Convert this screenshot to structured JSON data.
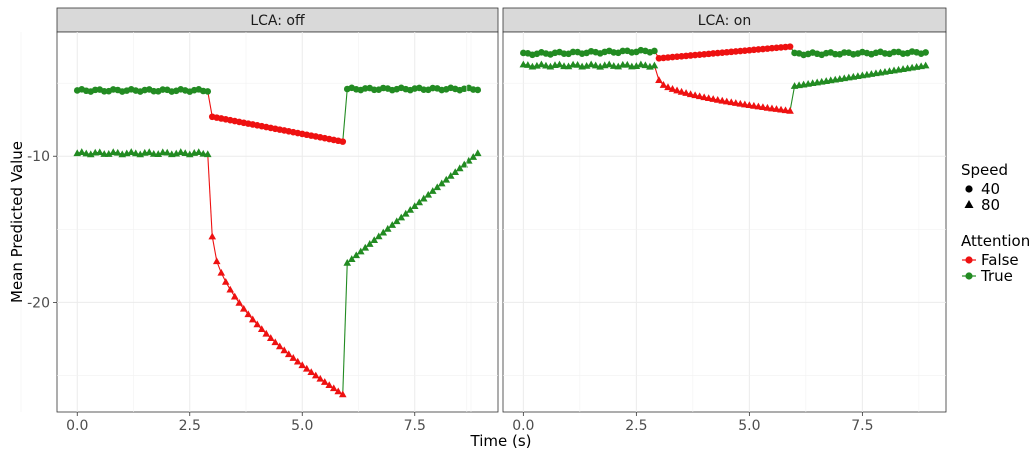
{
  "chart_data": {
    "type": "line",
    "xlabel": "Time (s)",
    "ylabel": "Mean Predicted Value",
    "xlim": [
      -0.45,
      9.35
    ],
    "ylim": [
      -27.5,
      -1.5
    ],
    "xticks": [
      0,
      2.5,
      5,
      7.5
    ],
    "xtick_labels": [
      "0.0",
      "2.5",
      "5.0",
      "7.5"
    ],
    "yticks": [
      -10,
      -20
    ],
    "ytick_labels": [
      "-10",
      "-20"
    ],
    "grid": true,
    "facet_labels": [
      "LCA: off",
      "LCA: on"
    ],
    "legend": {
      "placement": "right",
      "speed": {
        "title": "Speed",
        "items": [
          "40",
          "80"
        ],
        "shapes": [
          "circle",
          "triangle"
        ]
      },
      "attention": {
        "title": "Attention",
        "items": [
          "False",
          "True"
        ],
        "colors": [
          "#ee1111",
          "#228b22"
        ]
      }
    },
    "panels": [
      {
        "facet": "LCA: off",
        "series": [
          {
            "attention": "True",
            "speed": "40",
            "x_start": 0.0,
            "x_end": 2.9,
            "values": [
              -5.5,
              -5.5
            ]
          },
          {
            "attention": "False",
            "speed": "40",
            "x_start": 3.0,
            "x_end": 5.9,
            "values": [
              -7.3,
              -9.0
            ]
          },
          {
            "attention": "True",
            "speed": "40",
            "x_start": 6.0,
            "x_end": 8.9,
            "values": [
              -5.4,
              -5.4
            ]
          },
          {
            "attention": "True",
            "speed": "80",
            "x_start": 0.0,
            "x_end": 2.9,
            "values": [
              -9.8,
              -9.8
            ]
          },
          {
            "attention": "False",
            "speed": "80",
            "x_start": 3.0,
            "x_end": 5.9,
            "values": [
              -15.5,
              -26.3
            ]
          },
          {
            "attention": "True",
            "speed": "80",
            "x_start": 6.0,
            "x_end": 8.9,
            "values": [
              -17.3,
              -9.8
            ]
          }
        ]
      },
      {
        "facet": "LCA: on",
        "series": [
          {
            "attention": "True",
            "speed": "40",
            "x_start": 0.0,
            "x_end": 2.9,
            "values": [
              -3.0,
              -2.8
            ]
          },
          {
            "attention": "False",
            "speed": "40",
            "x_start": 3.0,
            "x_end": 5.9,
            "values": [
              -3.3,
              -2.5
            ]
          },
          {
            "attention": "True",
            "speed": "40",
            "x_start": 6.0,
            "x_end": 8.9,
            "values": [
              -3.0,
              -2.9
            ]
          },
          {
            "attention": "True",
            "speed": "80",
            "x_start": 0.0,
            "x_end": 2.9,
            "values": [
              -3.8,
              -3.8
            ]
          },
          {
            "attention": "False",
            "speed": "80",
            "x_start": 3.0,
            "x_end": 5.9,
            "values": [
              -4.8,
              -6.9
            ]
          },
          {
            "attention": "True",
            "speed": "80",
            "x_start": 6.0,
            "x_end": 8.9,
            "values": [
              -5.2,
              -3.8
            ]
          }
        ]
      }
    ]
  }
}
